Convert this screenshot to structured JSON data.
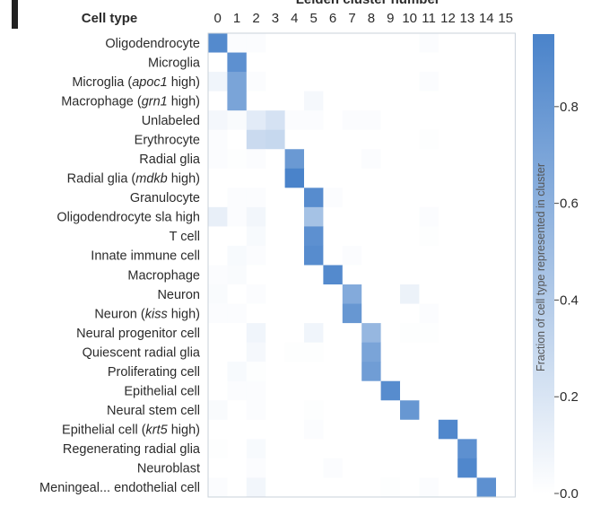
{
  "chart_data": {
    "type": "heatmap",
    "x_title": "Leiden cluster number",
    "y_title": "Cell type",
    "x_labels": [
      "0",
      "1",
      "2",
      "3",
      "4",
      "5",
      "6",
      "7",
      "8",
      "9",
      "10",
      "11",
      "12",
      "13",
      "14",
      "15"
    ],
    "rows": [
      [
        {
          "text": "Oligodendrocyte"
        }
      ],
      [
        {
          "text": "Microglia"
        }
      ],
      [
        {
          "text": "Microglia ("
        },
        {
          "text": "apoc1",
          "italic": true
        },
        {
          "text": " high)"
        }
      ],
      [
        {
          "text": "Macrophage ("
        },
        {
          "text": "grn1",
          "italic": true
        },
        {
          "text": " high)"
        }
      ],
      [
        {
          "text": "Unlabeled"
        }
      ],
      [
        {
          "text": "Erythrocyte"
        }
      ],
      [
        {
          "text": "Radial glia"
        }
      ],
      [
        {
          "text": "Radial glia ("
        },
        {
          "text": "mdkb",
          "italic": true
        },
        {
          "text": " high)"
        }
      ],
      [
        {
          "text": "Granulocyte"
        }
      ],
      [
        {
          "text": "Oligodendrocyte sla high"
        }
      ],
      [
        {
          "text": "T cell"
        }
      ],
      [
        {
          "text": "Innate immune cell"
        }
      ],
      [
        {
          "text": "Macrophage"
        }
      ],
      [
        {
          "text": "Neuron"
        }
      ],
      [
        {
          "text": "Neuron ("
        },
        {
          "text": "kiss",
          "italic": true
        },
        {
          "text": " high)"
        }
      ],
      [
        {
          "text": "Neural progenitor cell"
        }
      ],
      [
        {
          "text": "Quiescent radial glia"
        }
      ],
      [
        {
          "text": "Proliferating cell"
        }
      ],
      [
        {
          "text": "Epithelial cell"
        }
      ],
      [
        {
          "text": "Neural stem cell"
        }
      ],
      [
        {
          "text": "Epithelial cell ("
        },
        {
          "text": "krt5",
          "italic": true
        },
        {
          "text": " high)"
        }
      ],
      [
        {
          "text": "Regenerating radial glia"
        }
      ],
      [
        {
          "text": "Neuroblast"
        }
      ],
      [
        {
          "text": "Meningeal... endothelial cell"
        }
      ]
    ],
    "values": [
      [
        0.9,
        0.02,
        0.02,
        0,
        0,
        0,
        0,
        0,
        0,
        0,
        0,
        0.02,
        0,
        0,
        0,
        0
      ],
      [
        0,
        0.85,
        0,
        0,
        0,
        0,
        0,
        0,
        0,
        0,
        0,
        0,
        0,
        0,
        0,
        0
      ],
      [
        0.08,
        0.7,
        0.02,
        0,
        0,
        0,
        0,
        0,
        0,
        0,
        0,
        0.02,
        0,
        0,
        0,
        0
      ],
      [
        0,
        0.7,
        0,
        0,
        0,
        0.05,
        0,
        0,
        0,
        0,
        0,
        0,
        0,
        0,
        0,
        0
      ],
      [
        0.06,
        0.03,
        0.15,
        0.22,
        0.02,
        0.02,
        0,
        0.02,
        0.02,
        0,
        0,
        0,
        0,
        0,
        0,
        0
      ],
      [
        0.02,
        0,
        0.28,
        0.3,
        0,
        0,
        0,
        0,
        0,
        0,
        0,
        0.01,
        0,
        0,
        0,
        0
      ],
      [
        0.02,
        0.01,
        0.02,
        0,
        0.78,
        0,
        0,
        0,
        0.02,
        0,
        0,
        0,
        0,
        0,
        0,
        0
      ],
      [
        0,
        0,
        0,
        0,
        0.95,
        0,
        0,
        0,
        0,
        0,
        0,
        0,
        0,
        0,
        0,
        0
      ],
      [
        0,
        0.02,
        0.02,
        0,
        0,
        0.88,
        0.02,
        0,
        0,
        0,
        0,
        0,
        0,
        0,
        0,
        0
      ],
      [
        0.12,
        0.02,
        0.07,
        0,
        0,
        0.47,
        0,
        0,
        0,
        0,
        0,
        0.02,
        0,
        0,
        0,
        0
      ],
      [
        0,
        0,
        0.04,
        0,
        0,
        0.85,
        0,
        0,
        0,
        0,
        0,
        0.01,
        0,
        0,
        0,
        0
      ],
      [
        0,
        0.04,
        0.02,
        0,
        0,
        0.88,
        0,
        0.02,
        0,
        0,
        0,
        0,
        0,
        0,
        0,
        0
      ],
      [
        0.02,
        0.03,
        0,
        0,
        0,
        0,
        0.9,
        0,
        0,
        0,
        0,
        0,
        0,
        0,
        0,
        0
      ],
      [
        0.03,
        0,
        0.02,
        0,
        0,
        0,
        0,
        0.65,
        0,
        0,
        0.1,
        0,
        0,
        0,
        0,
        0
      ],
      [
        0.02,
        0.02,
        0,
        0,
        0,
        0,
        0,
        0.8,
        0,
        0,
        0,
        0.02,
        0,
        0,
        0,
        0
      ],
      [
        0,
        0,
        0.08,
        0,
        0,
        0.08,
        0,
        0,
        0.55,
        0,
        0.01,
        0.01,
        0,
        0,
        0,
        0
      ],
      [
        0,
        0,
        0.05,
        0,
        0.01,
        0.01,
        0,
        0,
        0.7,
        0,
        0,
        0,
        0,
        0,
        0,
        0
      ],
      [
        0,
        0.04,
        0.01,
        0,
        0,
        0,
        0,
        0,
        0.75,
        0,
        0,
        0,
        0,
        0,
        0,
        0
      ],
      [
        0,
        0.02,
        0.02,
        0,
        0,
        0,
        0,
        0,
        0,
        0.88,
        0,
        0,
        0,
        0,
        0,
        0
      ],
      [
        0.03,
        0,
        0.02,
        0,
        0,
        0.01,
        0,
        0,
        0,
        0,
        0.8,
        0,
        0,
        0,
        0,
        0
      ],
      [
        0,
        0,
        0,
        0,
        0,
        0.02,
        0,
        0,
        0,
        0,
        0,
        0,
        0.92,
        0,
        0,
        0
      ],
      [
        0.01,
        0,
        0.04,
        0,
        0,
        0,
        0,
        0,
        0,
        0,
        0,
        0,
        0,
        0.85,
        0,
        0
      ],
      [
        0,
        0,
        0.02,
        0,
        0,
        0,
        0.02,
        0,
        0,
        0,
        0,
        0,
        0,
        0.92,
        0,
        0
      ],
      [
        0.02,
        0,
        0.07,
        0,
        0,
        0,
        0,
        0,
        0,
        0.01,
        0,
        0.02,
        0,
        0,
        0.85,
        0
      ]
    ],
    "colorbar": {
      "label": "Fraction of cell type represented in cluster",
      "ticks": [
        0.0,
        0.2,
        0.4,
        0.6,
        0.8
      ],
      "tick_labels": [
        "0.0",
        "0.2",
        "0.4",
        "0.6",
        "0.8"
      ],
      "range": [
        0,
        0.95
      ]
    },
    "colors": {
      "low": "#ffffff",
      "high": "#4a83ca",
      "frame": "#c9d2da",
      "text": "#2b2b2b"
    }
  }
}
